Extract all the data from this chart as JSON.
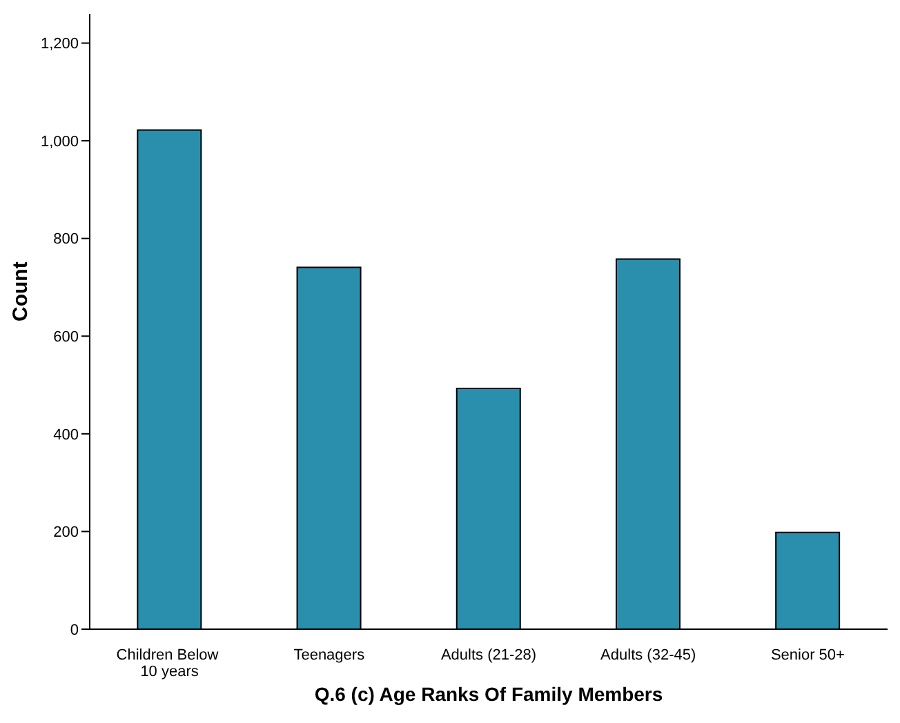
{
  "chart_data": {
    "type": "bar",
    "xlabel": "Q.6 (c) Age Ranks Of Family Members",
    "ylabel": "Count",
    "categories": [
      "Children Below  10 years",
      "Teenagers",
      "Adults (21-28)",
      "Adults (32-45)",
      "Senior 50+"
    ],
    "values": [
      1022,
      741,
      493,
      758,
      198
    ],
    "color": "#2a8fad",
    "ylim": [
      0,
      1260
    ],
    "yticks": [
      0,
      200,
      400,
      600,
      800,
      {
        "value": 1000,
        "label": "1,000"
      },
      {
        "value": 1200,
        "label": "1,200"
      }
    ],
    "grid": false,
    "legend": false
  }
}
